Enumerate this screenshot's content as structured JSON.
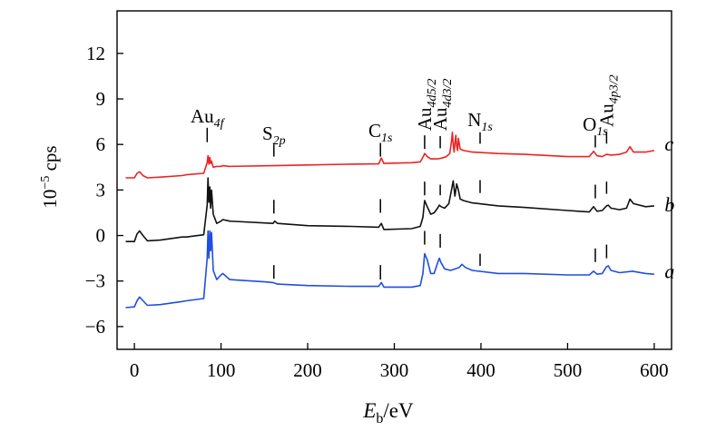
{
  "chart_data": {
    "type": "line",
    "title": "",
    "xlabel": {
      "main": "E",
      "sub": "b",
      "unit": "/eV"
    },
    "ylabel": {
      "base": "10",
      "exp": "−5",
      "unit": " cps"
    },
    "xlim": [
      -20,
      620
    ],
    "ylim": [
      -7.5,
      14.8
    ],
    "xticks": [
      0,
      100,
      200,
      300,
      400,
      500,
      600
    ],
    "yticks": [
      -6,
      -3,
      0,
      3,
      6,
      9,
      12
    ],
    "grid": false,
    "colors": {
      "a": "#1f4fe0",
      "b": "#111111",
      "c": "#ee2222"
    },
    "series": [
      {
        "name": "a",
        "color": "#1f4fe0",
        "x": [
          -10,
          0,
          3,
          6,
          10,
          15,
          30,
          55,
          60,
          80,
          84,
          85,
          86,
          87,
          88,
          89,
          91,
          95,
          100,
          102,
          110,
          150,
          160,
          165,
          200,
          250,
          282,
          285,
          288,
          320,
          330,
          333,
          335,
          338,
          342,
          346,
          350,
          352,
          354,
          358,
          365,
          375,
          378,
          382,
          390,
          420,
          450,
          500,
          525,
          530,
          534,
          540,
          545,
          547,
          550,
          560,
          575,
          590,
          600
        ],
        "y": [
          -4.75,
          -4.7,
          -4.3,
          -4.05,
          -4.3,
          -4.6,
          -4.55,
          -4.35,
          -4.3,
          -4.15,
          -1.5,
          0.3,
          -1.5,
          0.3,
          -1.0,
          0.2,
          -2.3,
          -2.9,
          -2.6,
          -2.5,
          -2.9,
          -3.05,
          -3.1,
          -3.2,
          -3.3,
          -3.35,
          -3.35,
          -3.1,
          -3.4,
          -3.4,
          -3.3,
          -2.5,
          -1.2,
          -1.6,
          -2.5,
          -2.5,
          -1.8,
          -1.5,
          -1.8,
          -2.2,
          -2.3,
          -2.1,
          -1.9,
          -2.1,
          -2.3,
          -2.5,
          -2.5,
          -2.6,
          -2.6,
          -2.35,
          -2.55,
          -2.5,
          -2.05,
          -2.0,
          -2.3,
          -2.45,
          -2.35,
          -2.5,
          -2.55
        ]
      },
      {
        "name": "b",
        "color": "#111111",
        "x": [
          -10,
          0,
          3,
          6,
          10,
          15,
          30,
          55,
          60,
          80,
          84,
          85,
          86,
          87,
          88,
          89,
          91,
          95,
          100,
          102,
          110,
          160,
          162,
          165,
          200,
          250,
          282,
          285,
          288,
          320,
          330,
          333,
          335,
          338,
          342,
          346,
          350,
          352,
          354,
          358,
          363,
          366,
          368,
          370,
          372,
          374,
          376,
          380,
          390,
          420,
          450,
          500,
          525,
          530,
          534,
          540,
          545,
          547,
          550,
          560,
          568,
          572,
          576,
          590,
          600
        ],
        "y": [
          -0.4,
          -0.4,
          0.1,
          0.3,
          0.0,
          -0.35,
          -0.3,
          -0.1,
          -0.1,
          0.05,
          2.0,
          3.8,
          2.2,
          3.2,
          1.8,
          3.0,
          1.4,
          0.8,
          0.95,
          1.05,
          0.95,
          0.8,
          0.95,
          0.8,
          0.65,
          0.6,
          0.55,
          0.8,
          0.4,
          0.45,
          0.6,
          1.2,
          2.3,
          1.9,
          1.4,
          1.5,
          1.8,
          2.0,
          1.9,
          1.8,
          2.1,
          3.0,
          3.6,
          2.6,
          3.4,
          3.0,
          2.4,
          2.3,
          2.15,
          1.95,
          1.85,
          1.65,
          1.55,
          1.9,
          1.6,
          1.65,
          1.95,
          2.0,
          1.8,
          1.7,
          1.8,
          2.4,
          2.1,
          1.9,
          1.95
        ]
      },
      {
        "name": "c",
        "color": "#ee2222",
        "x": [
          -10,
          0,
          3,
          6,
          10,
          15,
          30,
          55,
          60,
          80,
          84,
          85,
          86,
          87,
          88,
          89,
          91,
          95,
          100,
          102,
          110,
          160,
          200,
          250,
          282,
          285,
          288,
          320,
          330,
          333,
          335,
          338,
          342,
          350,
          355,
          360,
          364,
          366,
          367,
          368,
          369,
          370,
          371,
          372,
          373,
          374,
          376,
          380,
          390,
          420,
          450,
          500,
          525,
          530,
          534,
          540,
          545,
          550,
          560,
          568,
          572,
          576,
          590,
          600
        ],
        "y": [
          3.8,
          3.8,
          4.1,
          4.2,
          3.95,
          3.8,
          3.85,
          3.95,
          4.0,
          4.1,
          4.8,
          5.25,
          4.7,
          5.15,
          4.75,
          4.9,
          4.5,
          4.55,
          4.55,
          4.6,
          4.55,
          4.6,
          4.65,
          4.7,
          4.72,
          5.1,
          4.75,
          4.8,
          4.85,
          5.15,
          5.4,
          5.2,
          5.05,
          5.05,
          5.1,
          5.2,
          5.4,
          6.2,
          6.8,
          6.0,
          5.5,
          6.1,
          6.6,
          5.9,
          5.6,
          6.4,
          5.7,
          5.6,
          5.5,
          5.4,
          5.35,
          5.2,
          5.2,
          5.55,
          5.25,
          5.2,
          5.35,
          5.3,
          5.35,
          5.5,
          5.85,
          5.5,
          5.5,
          5.6
        ]
      }
    ],
    "series_labels": [
      {
        "text": "a",
        "x": 612,
        "y": -2.4
      },
      {
        "text": "b",
        "x": 612,
        "y": 2.0
      },
      {
        "text": "c",
        "x": 612,
        "y": 6.0
      }
    ],
    "peak_markers": [
      {
        "x": 84,
        "y1": 6.15,
        "y2": 7.1
      },
      {
        "x": 161,
        "y1": 5.2,
        "y2": 6.0
      },
      {
        "x": 161,
        "y1": 1.45,
        "y2": 2.35
      },
      {
        "x": 161,
        "y1": -2.85,
        "y2": -1.95
      },
      {
        "x": 284,
        "y1": 5.2,
        "y2": 6.1
      },
      {
        "x": 284,
        "y1": 1.5,
        "y2": 2.4
      },
      {
        "x": 284,
        "y1": -2.9,
        "y2": -1.95
      },
      {
        "x": 335,
        "y1": 5.7,
        "y2": 6.6
      },
      {
        "x": 335,
        "y1": 2.65,
        "y2": 3.55
      },
      {
        "x": 335,
        "y1": -0.6,
        "y2": 0.3
      },
      {
        "x": 353,
        "y1": 5.75,
        "y2": 6.55
      },
      {
        "x": 353,
        "y1": 2.65,
        "y2": 3.35
      },
      {
        "x": 353,
        "y1": -0.8,
        "y2": 0.1
      },
      {
        "x": 399,
        "y1": 6.05,
        "y2": 6.8
      },
      {
        "x": 399,
        "y1": 2.8,
        "y2": 3.65
      },
      {
        "x": 399,
        "y1": -2.0,
        "y2": -1.2
      },
      {
        "x": 532,
        "y1": 5.8,
        "y2": 6.6
      },
      {
        "x": 532,
        "y1": 2.45,
        "y2": 3.35
      },
      {
        "x": 532,
        "y1": -1.75,
        "y2": -0.85
      },
      {
        "x": 545,
        "y1": 6.05,
        "y2": 6.85
      },
      {
        "x": 545,
        "y1": 2.75,
        "y2": 3.55
      },
      {
        "x": 545,
        "y1": -1.5,
        "y2": -0.6
      }
    ],
    "annotations": [
      {
        "id": "au4f",
        "main": "Au",
        "sub": "4f",
        "x": 84,
        "y": 7.45
      },
      {
        "id": "s2p",
        "main": "S",
        "sub": "2p",
        "x": 161,
        "y": 6.3
      },
      {
        "id": "c1s",
        "main": "C",
        "sub": "1s",
        "x": 284,
        "y": 6.5
      },
      {
        "id": "au4d52",
        "main": "Au",
        "sub": "4d5/2",
        "x": 335,
        "y": 6.9,
        "rotate": true
      },
      {
        "id": "au4d32",
        "main": "Au",
        "sub": "4d3/2",
        "x": 353,
        "y": 6.9,
        "rotate": true
      },
      {
        "id": "n1s",
        "main": "N",
        "sub": "1s",
        "x": 399,
        "y": 7.2
      },
      {
        "id": "o1s",
        "main": "O",
        "sub": "1s",
        "x": 532,
        "y": 6.9
      },
      {
        "id": "au4p32",
        "main": "Au",
        "sub": "4p3/2",
        "x": 545,
        "y": 7.15,
        "rotate": true
      }
    ]
  }
}
